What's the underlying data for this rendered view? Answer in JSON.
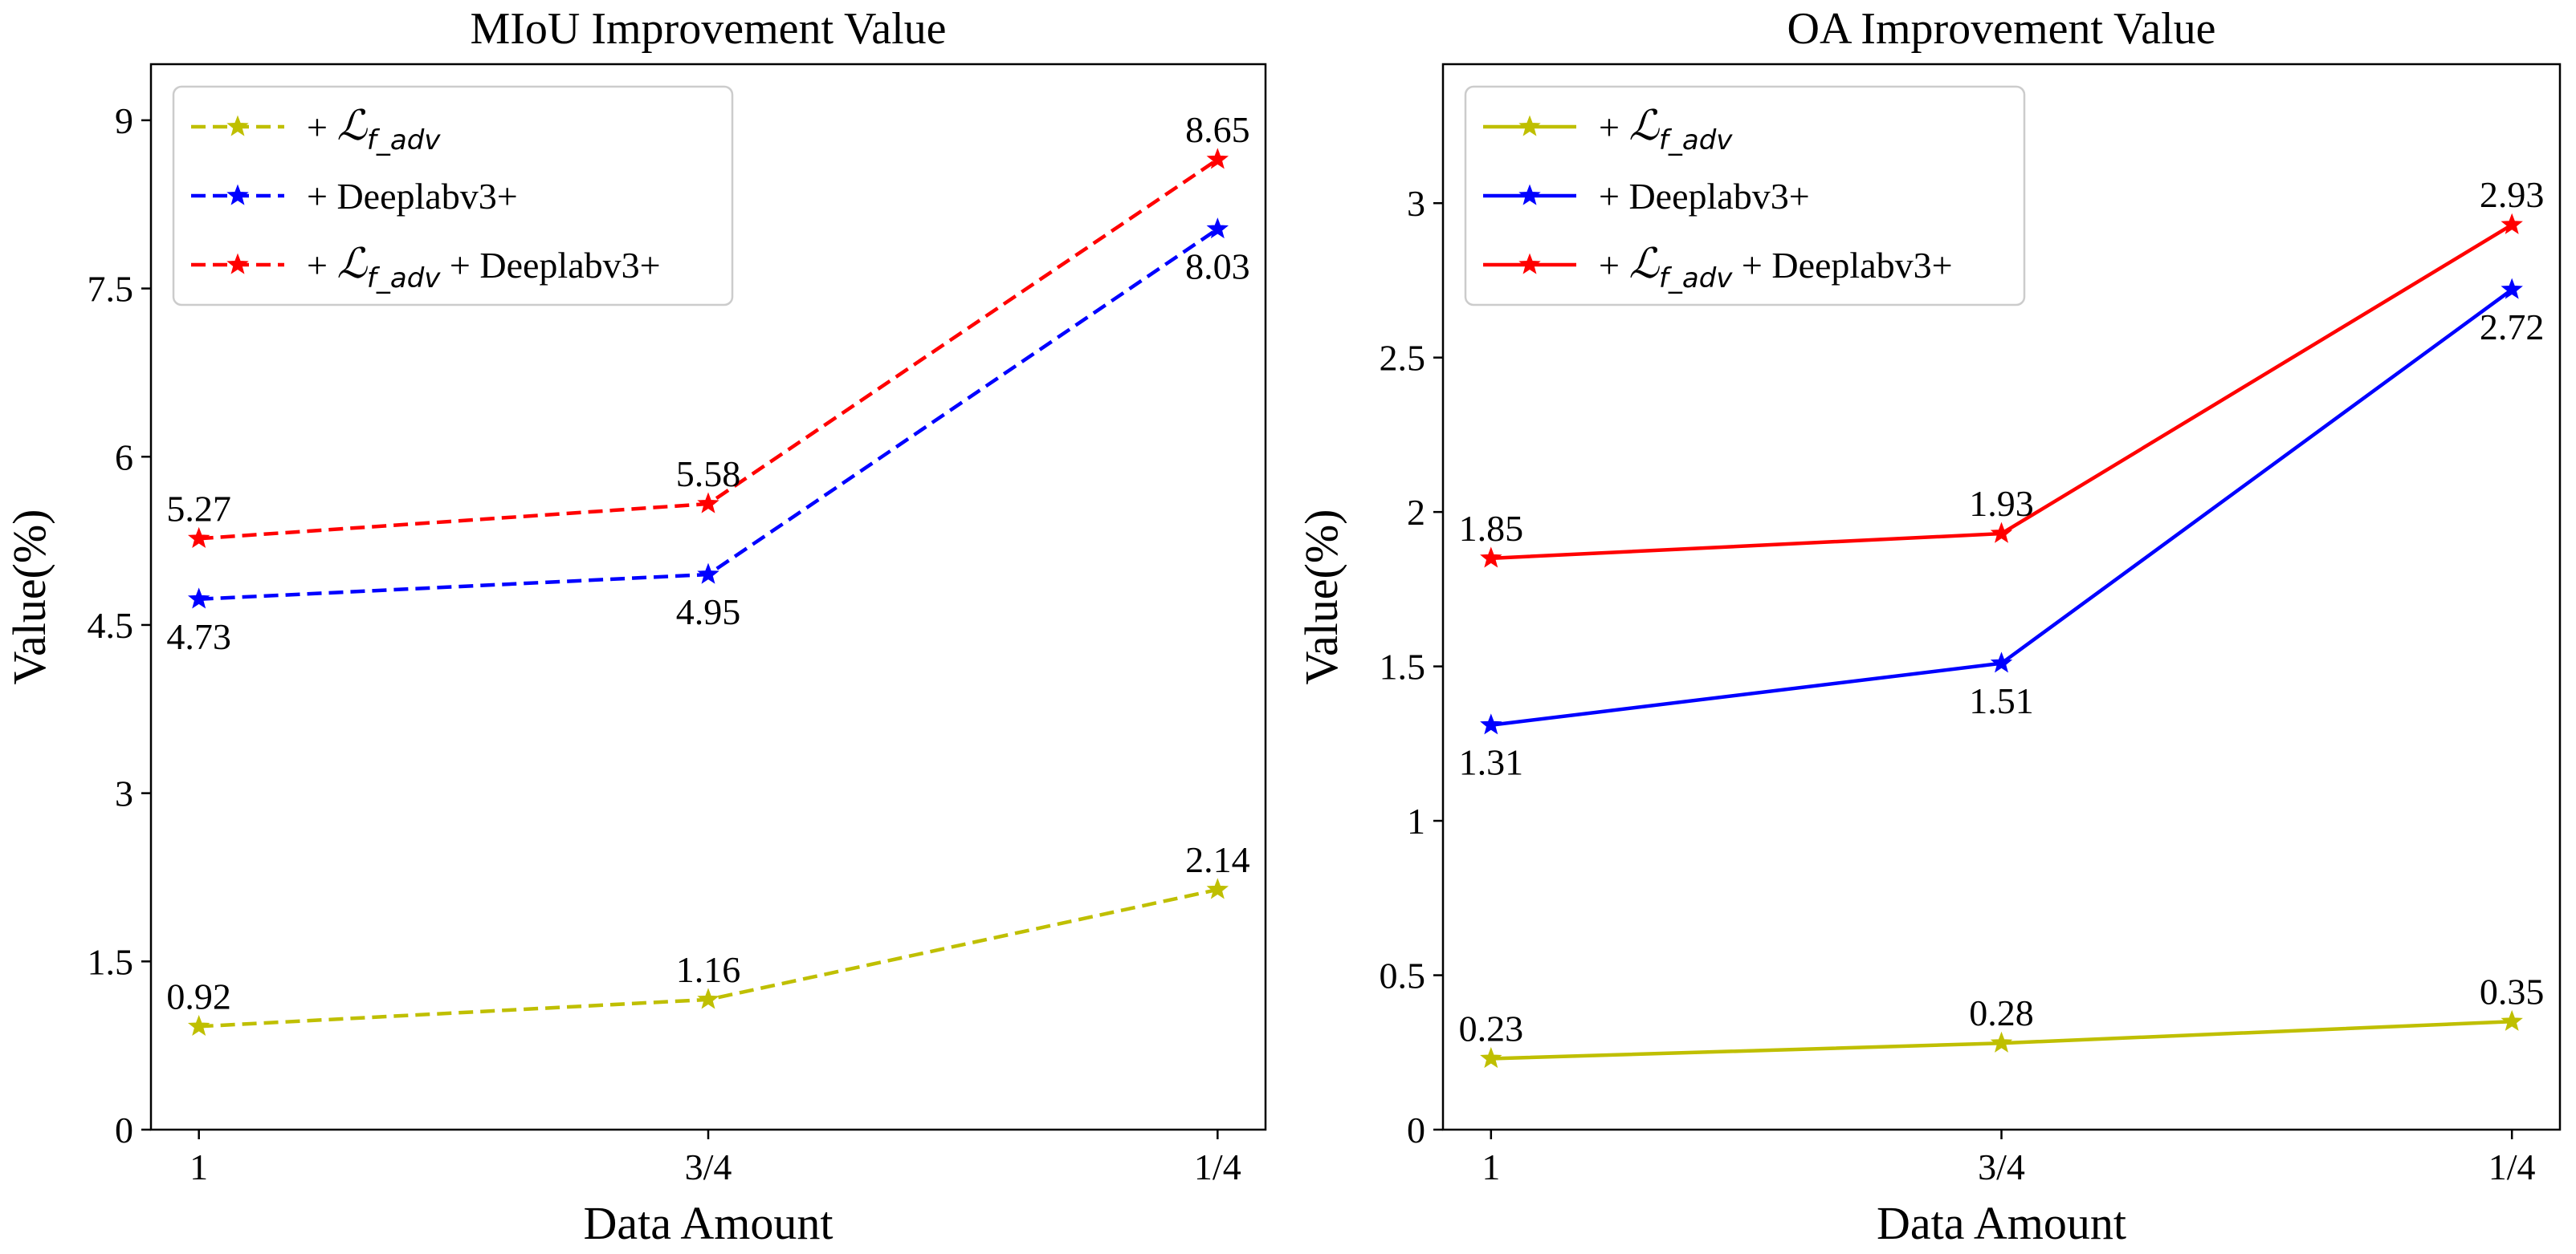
{
  "figure": {
    "colors": {
      "yellow": "#bfbf00",
      "blue": "#0000ff",
      "red": "#ff0000",
      "axis": "#000000",
      "legend_border": "#cccccc"
    }
  },
  "legend_labels": [
    {
      "prefix": "+ ",
      "script": "ℒ",
      "sub": "f_adv",
      "suffix": ""
    },
    {
      "prefix": "+ Deeplabv3+",
      "script": "",
      "sub": "",
      "suffix": ""
    },
    {
      "prefix": "+ ",
      "script": "ℒ",
      "sub": "f_adv",
      "suffix": " + Deeplabv3+"
    }
  ],
  "chart_data": [
    {
      "type": "line",
      "title": "MIoU Improvement Value",
      "xlabel": "Data Amount",
      "ylabel": "Value(%)",
      "categories": [
        "1",
        "3/4",
        "1/4"
      ],
      "ylim": [
        0,
        9.5
      ],
      "yticks": [
        0,
        1.5,
        3,
        4.5,
        6,
        7.5,
        9
      ],
      "ytick_labels": [
        "0",
        "1.5",
        "3",
        "4.5",
        "6",
        "7.5",
        "9"
      ],
      "line_style": "dashed",
      "marker": "star",
      "legend_position": "upper-left",
      "grid": false,
      "series": [
        {
          "legend_index": 0,
          "color": "#bfbf00",
          "values": [
            0.92,
            1.16,
            2.14
          ],
          "labels": [
            "0.92",
            "1.16",
            "2.14"
          ],
          "label_positions": [
            "above",
            "above",
            "above"
          ]
        },
        {
          "legend_index": 1,
          "color": "#0000ff",
          "values": [
            4.73,
            4.95,
            8.03
          ],
          "labels": [
            "4.73",
            "4.95",
            "8.03"
          ],
          "label_positions": [
            "below",
            "below",
            "below"
          ]
        },
        {
          "legend_index": 2,
          "color": "#ff0000",
          "values": [
            5.27,
            5.58,
            8.65
          ],
          "labels": [
            "5.27",
            "5.58",
            "8.65"
          ],
          "label_positions": [
            "above",
            "above",
            "above"
          ]
        }
      ]
    },
    {
      "type": "line",
      "title": "OA Improvement Value",
      "xlabel": "Data Amount",
      "ylabel": "Value(%)",
      "categories": [
        "1",
        "3/4",
        "1/4"
      ],
      "ylim": [
        0,
        3.45
      ],
      "yticks": [
        0,
        0.5,
        1,
        1.5,
        2,
        2.5,
        3
      ],
      "ytick_labels": [
        "0",
        "0.5",
        "1",
        "1.5",
        "2",
        "2.5",
        "3"
      ],
      "line_style": "solid",
      "marker": "star",
      "legend_position": "upper-left",
      "grid": false,
      "series": [
        {
          "legend_index": 0,
          "color": "#bfbf00",
          "values": [
            0.23,
            0.28,
            0.35
          ],
          "labels": [
            "0.23",
            "0.28",
            "0.35"
          ],
          "label_positions": [
            "above",
            "above",
            "above"
          ]
        },
        {
          "legend_index": 1,
          "color": "#0000ff",
          "values": [
            1.31,
            1.51,
            2.72
          ],
          "labels": [
            "1.31",
            "1.51",
            "2.72"
          ],
          "label_positions": [
            "below",
            "below",
            "below"
          ]
        },
        {
          "legend_index": 2,
          "color": "#ff0000",
          "values": [
            1.85,
            1.93,
            2.93
          ],
          "labels": [
            "1.85",
            "1.93",
            "2.93"
          ],
          "label_positions": [
            "above",
            "above",
            "above"
          ]
        }
      ]
    }
  ]
}
